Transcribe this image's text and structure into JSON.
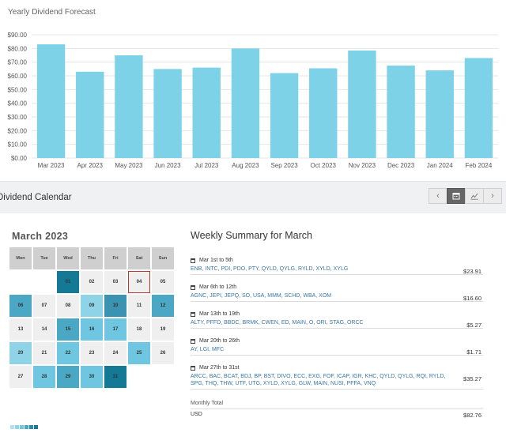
{
  "chart_data": {
    "type": "bar",
    "title": "Yearly Dividend Forecast",
    "categories": [
      "Mar 2023",
      "Apr 2023",
      "May 2023",
      "Jun 2023",
      "Jul 2023",
      "Aug 2023",
      "Sep 2023",
      "Oct 2023",
      "Nov 2023",
      "Dec 2023",
      "Jan 2024",
      "Feb 2024"
    ],
    "values": [
      83,
      63,
      75,
      65,
      66,
      80,
      62,
      65.5,
      78.5,
      67.5,
      64,
      73
    ],
    "y_ticks": [
      "$0.00",
      "$10.00",
      "$20.00",
      "$30.00",
      "$40.00",
      "$50.00",
      "$60.00",
      "$70.00",
      "$80.00",
      "$90.00"
    ],
    "ylim": [
      0,
      90
    ],
    "bar_color": "#7dd2e8",
    "grid": true
  },
  "calendar_section": {
    "heading": "Dividend Calendar",
    "toolbar": {
      "prev_icon": "chevron-left-icon",
      "calendar_icon": "calendar-icon",
      "chart_icon": "line-chart-icon",
      "next_icon": "chevron-right-icon"
    }
  },
  "calendar": {
    "month": "March 2023",
    "weekdays": [
      "Mon",
      "Tue",
      "Wed",
      "Thu",
      "Fri",
      "Sat",
      "Sun"
    ],
    "days": [
      {
        "d": "",
        "c": "none"
      },
      {
        "d": "",
        "c": "none"
      },
      {
        "d": "01",
        "c": "#137994"
      },
      {
        "d": "02",
        "c": "#efefef"
      },
      {
        "d": "03",
        "c": "#efefef"
      },
      {
        "d": "04",
        "c": "today"
      },
      {
        "d": "05",
        "c": "#efefef"
      },
      {
        "d": "06",
        "c": "#4ba8c5"
      },
      {
        "d": "07",
        "c": "#efefef"
      },
      {
        "d": "08",
        "c": "#efefef"
      },
      {
        "d": "09",
        "c": "#8fd3e7"
      },
      {
        "d": "10",
        "c": "#3a93b1"
      },
      {
        "d": "11",
        "c": "#efefef"
      },
      {
        "d": "12",
        "c": "#4ba8c5"
      },
      {
        "d": "13",
        "c": "#efefef"
      },
      {
        "d": "14",
        "c": "#efefef"
      },
      {
        "d": "15",
        "c": "#4ba8c5"
      },
      {
        "d": "16",
        "c": "#6fc6e0"
      },
      {
        "d": "17",
        "c": "#6fc6e0"
      },
      {
        "d": "18",
        "c": "#efefef"
      },
      {
        "d": "19",
        "c": "#efefef"
      },
      {
        "d": "20",
        "c": "#8fd3e7"
      },
      {
        "d": "21",
        "c": "#efefef"
      },
      {
        "d": "22",
        "c": "#6fc6e0"
      },
      {
        "d": "23",
        "c": "#efefef"
      },
      {
        "d": "24",
        "c": "#efefef"
      },
      {
        "d": "25",
        "c": "#6fc6e0"
      },
      {
        "d": "26",
        "c": "#efefef"
      },
      {
        "d": "27",
        "c": "#efefef"
      },
      {
        "d": "28",
        "c": "#6fc6e0"
      },
      {
        "d": "29",
        "c": "#4ba8c5"
      },
      {
        "d": "30",
        "c": "#6fc6e0"
      },
      {
        "d": "31",
        "c": "#137994"
      },
      {
        "d": "",
        "c": "none"
      },
      {
        "d": "",
        "c": "none"
      }
    ],
    "legend_colors": [
      "#b3e0ee",
      "#8fd3e7",
      "#6fc6e0",
      "#4ba8c5",
      "#2b8aa9",
      "#137994"
    ],
    "today_border": "#c0392b"
  },
  "summary": {
    "title": "Weekly Summary for March",
    "weeks": [
      {
        "range": "Mar 1st to 5th",
        "tickers": "ENB, INTC, PDI, PDO, PTY, QYLD, QYLG, RYLD, XYLD, XYLG",
        "amount": "$23.91"
      },
      {
        "range": "Mar 6th to 12th",
        "tickers": "AGNC, JEPI, JEPQ, SO, USA, MMM, SCHD, WBA, XOM",
        "amount": "$16.60"
      },
      {
        "range": "Mar 13th to 19th",
        "tickers": "ALTY, PFFD, BBDC, BRMK, CWEN, ED, MAIN, O, ORI, STAG, ORCC",
        "amount": "$5.27"
      },
      {
        "range": "Mar 20th to 26th",
        "tickers": "AY, LGI, MFC",
        "amount": "$1.71"
      },
      {
        "range": "Mar 27th to 31st",
        "tickers": "ARCC, BAC, BCAT, BDJ, BP, BST, DIVO, ECC, EXG, FOF, ICAP, IGR, KHC, QYLD, QYLG, RQI, RYLD, SPG, THQ, THW, UTF, UTG, XYLD, XYLG, GLW, MAIN, NUSI, PFFA, VNQ",
        "amount": "$35.27"
      }
    ],
    "total_label": "Monthly Total",
    "currency": "USD",
    "total": "$82.76"
  }
}
